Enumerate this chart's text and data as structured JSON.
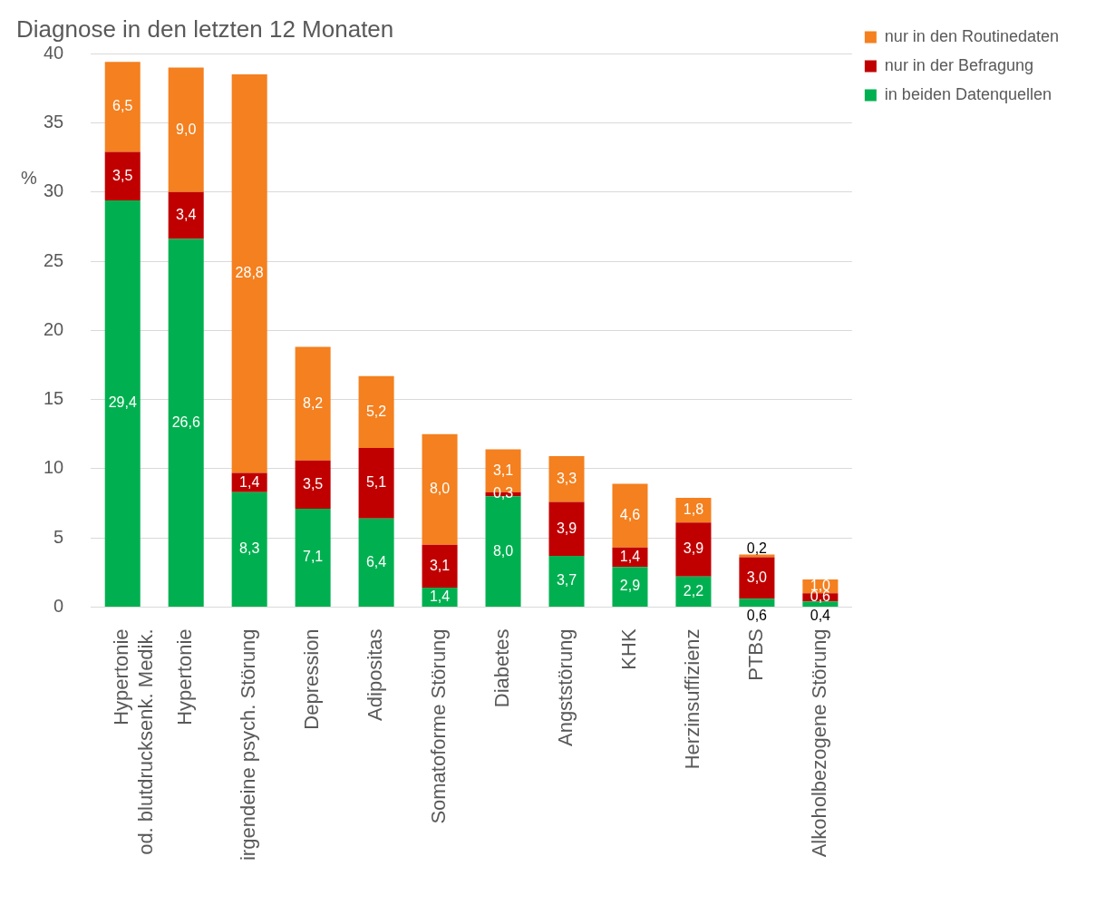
{
  "chart_data": {
    "type": "bar",
    "title": "Diagnose in den letzten 12 Monaten",
    "ylabel": "%",
    "stacked": true,
    "categories": [
      "Hypertonie\nod. blutdrucksenk. Medik.",
      "Hypertonie",
      "irgendeine psych. Störung",
      "Depression",
      "Adipositas",
      "Somatoforme Störung",
      "Diabetes",
      "Angststörung",
      "KHK",
      "Herzinsuffizienz",
      "PTBS",
      "Alkoholbezogene Störung"
    ],
    "series": [
      {
        "name": "in beiden Datenquellen",
        "color": "#00b050",
        "values": [
          29.4,
          26.6,
          8.3,
          7.1,
          6.4,
          1.4,
          8.0,
          3.7,
          2.9,
          2.2,
          0.6,
          0.4
        ],
        "value_labels": [
          "29,4",
          "26,6",
          "8,3",
          "7,1",
          "6,4",
          "1,4",
          "8,0",
          "3,7",
          "2,9",
          "2,2",
          "0,6",
          "0,4"
        ]
      },
      {
        "name": "nur in der Befragung",
        "color": "#c00000",
        "values": [
          3.5,
          3.4,
          1.4,
          3.5,
          5.1,
          3.1,
          0.3,
          3.9,
          1.4,
          3.9,
          3.0,
          0.6
        ],
        "value_labels": [
          "3,5",
          "3,4",
          "1,4",
          "3,5",
          "5,1",
          "3,1",
          "0,3",
          "3,9",
          "1,4",
          "3,9",
          "3,0",
          "0,6"
        ]
      },
      {
        "name": "nur in den Routinedaten",
        "color": "#f4801f",
        "values": [
          6.5,
          9.0,
          28.8,
          8.2,
          5.2,
          8.0,
          3.1,
          3.3,
          4.6,
          1.8,
          0.2,
          1.0
        ],
        "value_labels": [
          "6,5",
          "9,0",
          "28,8",
          "8,2",
          "5,2",
          "8,0",
          "3,1",
          "3,3",
          "4,6",
          "1,8",
          "0,2",
          "1,0"
        ]
      }
    ],
    "ylim": [
      0,
      40
    ],
    "yticks": [
      0,
      5,
      10,
      15,
      20,
      25,
      30,
      35,
      40
    ],
    "grid": "y",
    "legend": "top right"
  }
}
